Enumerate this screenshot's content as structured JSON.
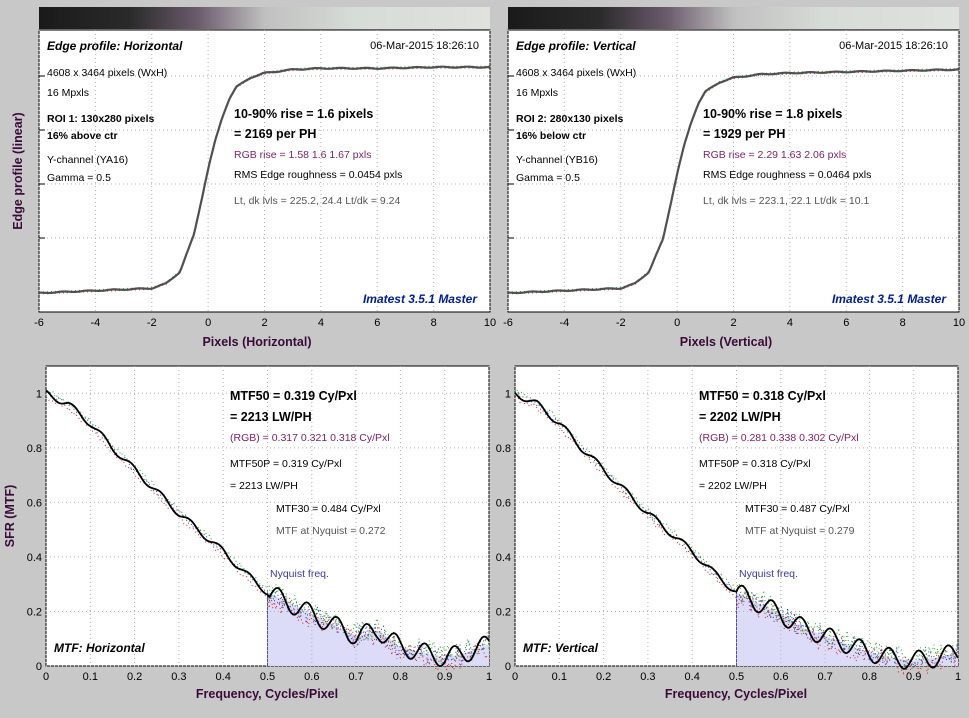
{
  "colors": {
    "background": "#c8c8c8",
    "plot_bg": "#ffffff",
    "grid": "#b0b0b0",
    "curve": "#505050",
    "mtf_curve": "#000000",
    "red_channel": "#d02020",
    "green_channel": "#20a020",
    "blue_channel": "#2030d0",
    "axis_label": "#3a0a3a",
    "rgb_text": "#7a1e6a",
    "watermark": "#00208a",
    "nyquist_fill": "#dcdcf8",
    "nyquist_line": "#4a4ab0"
  },
  "edge_panels": [
    {
      "title": "Edge profile: Horizontal",
      "date": "06-Mar-2015 18:26:10",
      "dims": "4608 x 3464 pixels (WxH)",
      "mp": "16 Mpxls",
      "roi": "ROI 1:  130x280 pixels",
      "pos": "16% above ctr",
      "channel": "Y-channel  (YA16)",
      "gamma": "Gamma = 0.5",
      "rise": "10-90% rise = 1.6 pixels",
      "per_ph": "= 2169 per PH",
      "rgb_rise": "RGB rise = 1.58  1.6  1.67 pxls",
      "rms": "RMS Edge roughness = 0.0454 pxls",
      "levels": "Lt, dk lvls = 225.2, 24.4   Lt/dk = 9.24",
      "watermark": "Imatest 3.5.1 Master",
      "xlabel": "Pixels (Horizontal)",
      "ylabel": "Edge profile (linear)"
    },
    {
      "title": "Edge profile: Vertical",
      "date": "06-Mar-2015 18:26:10",
      "dims": "4608 x 3464 pixels (WxH)",
      "mp": "16 Mpxls",
      "roi": "ROI 2:  280x130 pixels",
      "pos": "16% below ctr",
      "channel": "Y-channel  (YB16)",
      "gamma": "Gamma = 0.5",
      "rise": "10-90% rise = 1.8 pixels",
      "per_ph": "= 1929 per PH",
      "rgb_rise": "RGB rise = 2.29  1.63  2.06 pxls",
      "rms": "RMS Edge roughness = 0.0464 pxls",
      "levels": "Lt, dk lvls = 223.1, 22.1    Lt/dk = 10.1",
      "watermark": "Imatest 3.5.1 Master",
      "xlabel": "Pixels (Vertical)",
      "ylabel": ""
    }
  ],
  "mtf_panels": [
    {
      "title": "MTF: Horizontal",
      "mtf50": "MTF50 = 0.319 Cy/Pxl",
      "lwph": "= 2213 LW/PH",
      "rgb": "(RGB) = 0.317  0.321  0.318 Cy/Pxl",
      "mtf50p": "MTF50P = 0.319 Cy/Pxl",
      "lwph2": "= 2213 LW/PH",
      "mtf30": "MTF30 = 0.484 Cy/Pxl",
      "nyq_mtf": "MTF at Nyquist = 0.272",
      "nyq_label": "Nyquist freq.",
      "xlabel": "Frequency, Cycles/Pixel",
      "ylabel": "SFR (MTF)"
    },
    {
      "title": "MTF: Vertical",
      "mtf50": "MTF50 = 0.318 Cy/Pxl",
      "lwph": "= 2202 LW/PH",
      "rgb": "(RGB) = 0.281  0.338  0.302 Cy/Pxl",
      "mtf50p": "MTF50P = 0.318 Cy/Pxl",
      "lwph2": "= 2202 LW/PH",
      "mtf30": "MTF30 = 0.487 Cy/Pxl",
      "nyq_mtf": "MTF at Nyquist = 0.279",
      "nyq_label": "Nyquist freq.",
      "xlabel": "Frequency, Cycles/Pixel",
      "ylabel": ""
    }
  ],
  "chart_data": [
    {
      "type": "line",
      "title": "Edge profile: Horizontal",
      "xlabel": "Pixels (Horizontal)",
      "ylabel": "Edge profile (linear)",
      "xlim": [
        -6,
        10
      ],
      "xticks": [
        -6,
        -4,
        -2,
        0,
        2,
        4,
        6,
        8,
        10
      ],
      "ylim": [
        0,
        1
      ],
      "grid": true,
      "series": [
        {
          "x": [
            -6,
            -4,
            -2,
            -1.5,
            -1,
            -0.5,
            -0.25,
            0,
            0.25,
            0.5,
            0.75,
            1,
            1.5,
            2,
            3,
            4,
            6,
            8,
            10
          ],
          "values": [
            0.03,
            0.04,
            0.05,
            0.07,
            0.12,
            0.28,
            0.42,
            0.56,
            0.68,
            0.78,
            0.86,
            0.91,
            0.95,
            0.97,
            0.985,
            0.99,
            0.99,
            0.995,
            0.995
          ]
        }
      ]
    },
    {
      "type": "line",
      "title": "Edge profile: Vertical",
      "xlabel": "Pixels (Vertical)",
      "xlim": [
        -6,
        10
      ],
      "xticks": [
        -6,
        -4,
        -2,
        0,
        2,
        4,
        6,
        8,
        10
      ],
      "ylim": [
        0,
        1
      ],
      "grid": true,
      "series": [
        {
          "x": [
            -6,
            -4,
            -2,
            -1.5,
            -1,
            -0.5,
            -0.25,
            0,
            0.25,
            0.5,
            0.75,
            1,
            1.5,
            2,
            3,
            4,
            6,
            8,
            10
          ],
          "values": [
            0.03,
            0.04,
            0.05,
            0.07,
            0.12,
            0.26,
            0.4,
            0.54,
            0.66,
            0.76,
            0.84,
            0.89,
            0.93,
            0.95,
            0.965,
            0.97,
            0.975,
            0.98,
            0.985
          ]
        }
      ]
    },
    {
      "type": "line",
      "title": "MTF: Horizontal",
      "xlabel": "Frequency, Cycles/Pixel",
      "ylabel": "SFR (MTF)",
      "xlim": [
        0,
        1
      ],
      "xticks": [
        0,
        0.1,
        0.2,
        0.3,
        0.4,
        0.5,
        0.6,
        0.7,
        0.8,
        0.9,
        1
      ],
      "ylim": [
        0,
        1.1
      ],
      "yticks": [
        0,
        0.2,
        0.4,
        0.6,
        0.8,
        1
      ],
      "nyquist": 0.5,
      "grid": true,
      "series": [
        {
          "x": [
            0,
            0.05,
            0.1,
            0.15,
            0.2,
            0.25,
            0.3,
            0.35,
            0.4,
            0.45,
            0.5,
            0.55,
            0.6,
            0.65,
            0.7,
            0.75,
            0.8,
            0.85,
            0.9,
            0.95,
            1.0
          ],
          "values": [
            1.0,
            0.96,
            0.89,
            0.8,
            0.72,
            0.64,
            0.56,
            0.49,
            0.42,
            0.34,
            0.27,
            0.23,
            0.19,
            0.15,
            0.11,
            0.13,
            0.07,
            0.05,
            0.03,
            0.05,
            0.08
          ]
        }
      ]
    },
    {
      "type": "line",
      "title": "MTF: Vertical",
      "xlabel": "Frequency, Cycles/Pixel",
      "xlim": [
        0,
        1
      ],
      "xticks": [
        0,
        0.1,
        0.2,
        0.3,
        0.4,
        0.5,
        0.6,
        0.7,
        0.8,
        0.9,
        1
      ],
      "ylim": [
        0,
        1.1
      ],
      "yticks": [
        0,
        0.2,
        0.4,
        0.6,
        0.8,
        1
      ],
      "nyquist": 0.5,
      "grid": true,
      "series": [
        {
          "x": [
            0,
            0.05,
            0.1,
            0.15,
            0.2,
            0.25,
            0.3,
            0.35,
            0.4,
            0.45,
            0.5,
            0.55,
            0.6,
            0.65,
            0.7,
            0.75,
            0.8,
            0.85,
            0.9,
            0.95,
            1.0
          ],
          "values": [
            1.0,
            0.96,
            0.89,
            0.8,
            0.72,
            0.64,
            0.56,
            0.49,
            0.42,
            0.34,
            0.27,
            0.23,
            0.19,
            0.14,
            0.11,
            0.08,
            0.05,
            0.03,
            0.02,
            0.03,
            0.05
          ]
        }
      ]
    }
  ]
}
